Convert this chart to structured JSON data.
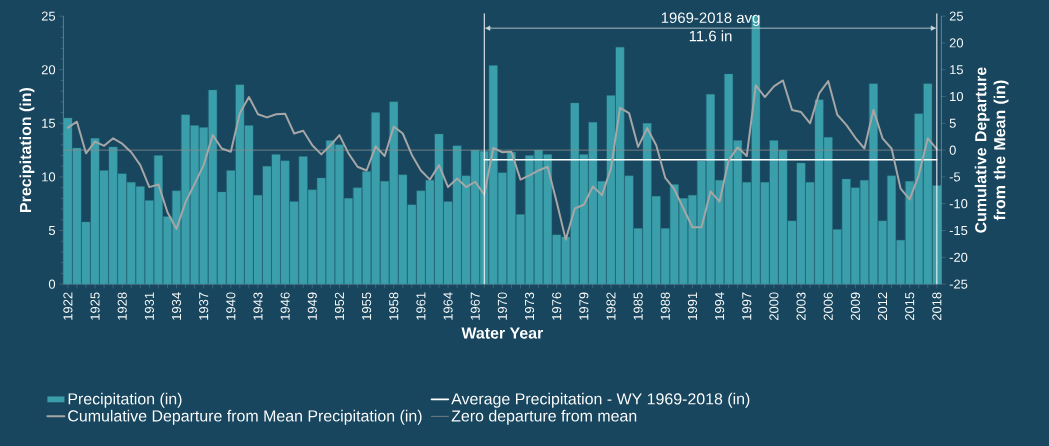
{
  "chart_data": {
    "type": "bar",
    "xlabel": "Water Year",
    "ylabel": "Precipitation (in)",
    "y2label": "Cumulative Departure from the Mean (in)",
    "categories": [
      "1922",
      null,
      null,
      "1925",
      null,
      null,
      "1928",
      null,
      null,
      "1931",
      null,
      null,
      "1934",
      null,
      null,
      "1937",
      null,
      null,
      "1940",
      null,
      null,
      "1943",
      null,
      null,
      "1946",
      null,
      null,
      "1949",
      null,
      null,
      "1952",
      null,
      null,
      "1955",
      null,
      null,
      "1958",
      null,
      null,
      "1961",
      null,
      null,
      "1964",
      null,
      null,
      "1967",
      null,
      null,
      "1970",
      null,
      null,
      "1973",
      null,
      null,
      "1976",
      null,
      null,
      "1979",
      null,
      null,
      "1982",
      null,
      null,
      "1985",
      null,
      null,
      "1988",
      null,
      null,
      "1991",
      null,
      null,
      "1994",
      null,
      null,
      "1997",
      null,
      null,
      "2000",
      null,
      null,
      "2003",
      null,
      null,
      "2006",
      null,
      null,
      "2009",
      null,
      null,
      "2012",
      null,
      null,
      "2015",
      null,
      null,
      "2018"
    ],
    "series": [
      {
        "name": "Precipitation (in)",
        "color": "#3a9eab",
        "values": [
          15.5,
          12.7,
          5.8,
          13.6,
          10.6,
          12.8,
          10.3,
          9.5,
          9.1,
          7.8,
          12.0,
          6.3,
          8.7,
          15.8,
          14.8,
          14.6,
          18.1,
          8.6,
          10.6,
          18.6,
          14.8,
          8.3,
          11.0,
          12.1,
          11.5,
          7.7,
          11.9,
          8.8,
          9.9,
          13.4,
          13.0,
          8.0,
          9.0,
          10.5,
          16.0,
          9.6,
          17.0,
          10.2,
          7.4,
          8.7,
          9.7,
          14.0,
          7.7,
          12.9,
          10.1,
          12.5,
          12.4,
          20.4,
          10.4,
          12.3,
          6.5,
          12.0,
          12.5,
          12.1,
          4.6,
          4.4,
          16.9,
          12.1,
          15.1,
          9.6,
          17.6,
          22.1,
          10.1,
          5.2,
          15.0,
          8.2,
          5.2,
          9.3,
          8.0,
          8.3,
          11.5,
          17.7,
          9.7,
          19.6,
          13.4,
          9.5,
          25.0,
          9.5,
          13.4,
          12.5,
          5.9,
          11.3,
          9.5,
          17.2,
          13.7,
          5.1,
          9.8,
          9.0,
          9.7,
          18.7,
          5.9,
          10.1,
          4.1,
          9.6,
          15.9,
          18.7,
          9.2
        ]
      },
      {
        "name": "Average Precipitation - WY 1969-2018 (in)",
        "type": "line",
        "color": "#ffffff",
        "values": [
          null,
          null,
          null,
          null,
          null,
          null,
          null,
          null,
          null,
          null,
          null,
          null,
          null,
          null,
          null,
          null,
          null,
          null,
          null,
          null,
          null,
          null,
          null,
          null,
          null,
          null,
          null,
          null,
          null,
          null,
          null,
          null,
          null,
          null,
          null,
          null,
          null,
          null,
          null,
          null,
          null,
          null,
          null,
          null,
          null,
          null,
          11.6,
          11.6,
          11.6,
          11.6,
          11.6,
          11.6,
          11.6,
          11.6,
          11.6,
          11.6,
          11.6,
          11.6,
          11.6,
          11.6,
          11.6,
          11.6,
          11.6,
          11.6,
          11.6,
          11.6,
          11.6,
          11.6,
          11.6,
          11.6,
          11.6,
          11.6,
          11.6,
          11.6,
          11.6,
          11.6,
          11.6,
          11.6,
          11.6,
          11.6,
          11.6,
          11.6,
          11.6,
          11.6,
          11.6,
          11.6,
          11.6,
          11.6,
          11.6,
          11.6,
          11.6,
          11.6,
          11.6,
          11.6,
          11.6,
          11.6,
          11.6
        ]
      },
      {
        "name": "Cumulative Departure from Mean Precipitation (in)",
        "type": "line",
        "axis": "y2",
        "color": "#a6a6a6",
        "values": [
          4.2,
          5.3,
          -0.6,
          1.6,
          0.8,
          2.2,
          1.2,
          -0.4,
          -2.8,
          -6.9,
          -6.4,
          -11.6,
          -14.7,
          -9.7,
          -6.3,
          -2.8,
          2.8,
          0.3,
          -0.3,
          6.9,
          9.9,
          6.7,
          6.1,
          6.7,
          6.8,
          3.1,
          3.6,
          0.9,
          -0.8,
          0.9,
          2.8,
          -0.6,
          -3.1,
          -3.8,
          0.7,
          -1.1,
          4.4,
          3.1,
          -0.9,
          -3.8,
          -5.5,
          -2.8,
          -6.9,
          -5.3,
          -6.9,
          -5.9,
          -8.3,
          0.4,
          -0.4,
          -0.3,
          -5.5,
          -4.7,
          -3.8,
          -3.1,
          -9.7,
          -16.7,
          -10.9,
          -10.2,
          -6.8,
          -8.4,
          -3.4,
          7.9,
          6.9,
          0.6,
          4.1,
          0.9,
          -5.2,
          -7.3,
          -10.9,
          -14.4,
          -14.4,
          -7.7,
          -9.6,
          -1.9,
          0.5,
          -1.1,
          12.1,
          9.9,
          11.9,
          13.0,
          7.5,
          7.1,
          5.0,
          10.6,
          12.9,
          6.6,
          4.7,
          2.3,
          0.3,
          7.5,
          2.2,
          0.3,
          -7.2,
          -9.2,
          -4.7,
          2.2,
          0.2
        ]
      }
    ],
    "ref_lines": [
      {
        "axis": "y2",
        "value": 0,
        "label": "Zero departure from mean",
        "color": "#8c8c8c"
      }
    ],
    "annotations": [
      "1969-2018 avg",
      "11.6 in"
    ],
    "ylim": [
      0,
      25
    ],
    "yticks": [
      0,
      5,
      10,
      15,
      20,
      25
    ],
    "y2lim": [
      -25,
      25
    ],
    "y2ticks": [
      -25,
      -20,
      -15,
      -10,
      -5,
      0,
      5,
      10,
      15,
      20,
      25
    ],
    "legend": "bottom"
  }
}
